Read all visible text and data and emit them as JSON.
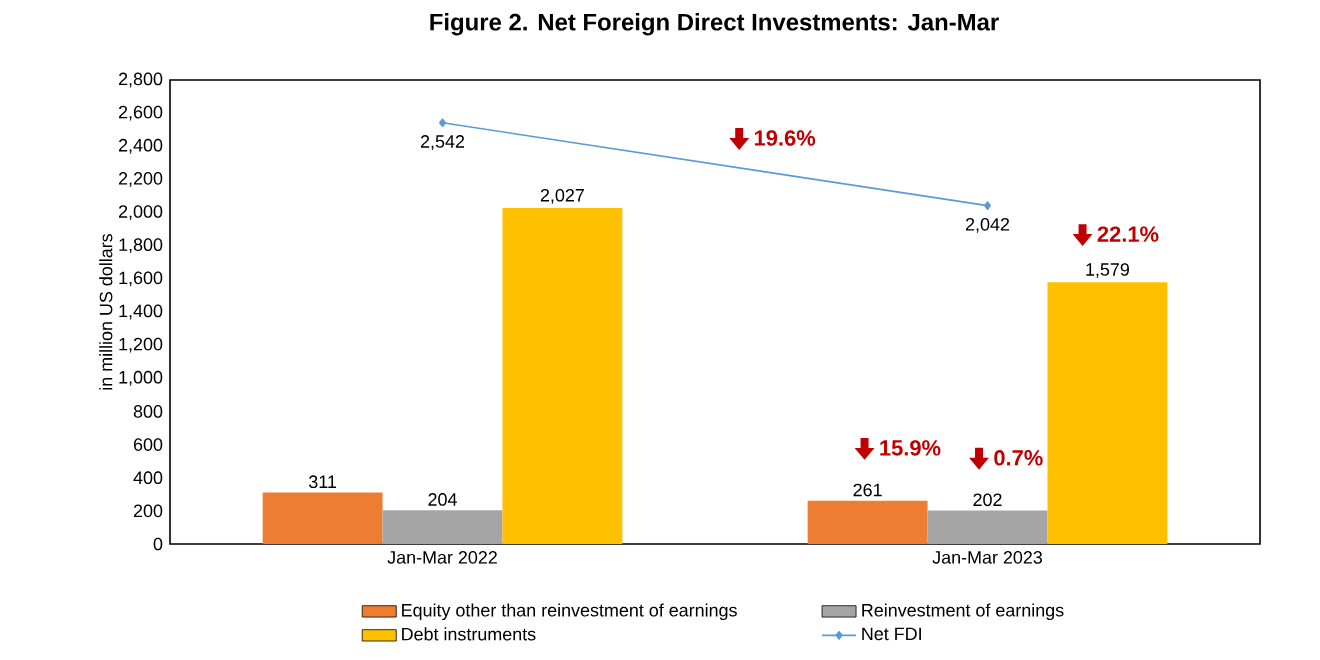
{
  "chart_data": {
    "type": "bar",
    "title": "Figure 2. Net Foreign Direct Investments: Jan-Mar",
    "ylabel": "in million US dollars",
    "categories": [
      "Jan-Mar 2022",
      "Jan-Mar 2023"
    ],
    "series": [
      {
        "name": "Equity other than reinvestment of earnings",
        "color": "#ed7d31",
        "values": [
          311,
          261
        ],
        "value_labels": [
          "311",
          "261"
        ]
      },
      {
        "name": "Reinvestment of earnings",
        "color": "#a5a5a5",
        "values": [
          204,
          202
        ],
        "value_labels": [
          "204",
          "202"
        ]
      },
      {
        "name": "Debt instruments",
        "color": "#ffc000",
        "values": [
          2027,
          1579
        ],
        "value_labels": [
          "2,027",
          "1,579"
        ]
      },
      {
        "name": "Net FDI",
        "type": "line",
        "color": "#5b9bd5",
        "marker": "diamond",
        "values": [
          2542,
          2042
        ],
        "value_labels": [
          "2,542",
          "2,042"
        ]
      }
    ],
    "ylim": [
      0,
      2800
    ],
    "yticks": [
      0,
      200,
      400,
      600,
      800,
      {
        "value": 1000,
        "label": "1,000"
      },
      {
        "value": 1200,
        "label": "1,200"
      },
      {
        "value": 1400,
        "label": "1,400"
      },
      {
        "value": 1600,
        "label": "1,600"
      },
      {
        "value": 1800,
        "label": "1,800"
      },
      {
        "value": 2000,
        "label": "2,000"
      },
      {
        "value": 2200,
        "label": "2,200"
      },
      {
        "value": 2400,
        "label": "2,400"
      },
      {
        "value": 2600,
        "label": "2,600"
      },
      {
        "value": 2800,
        "label": "2,800"
      }
    ],
    "grid": false,
    "legend": "bottom",
    "annotations": [
      "19.6%",
      "22.1%",
      "15.9%",
      "0.7%"
    ]
  }
}
